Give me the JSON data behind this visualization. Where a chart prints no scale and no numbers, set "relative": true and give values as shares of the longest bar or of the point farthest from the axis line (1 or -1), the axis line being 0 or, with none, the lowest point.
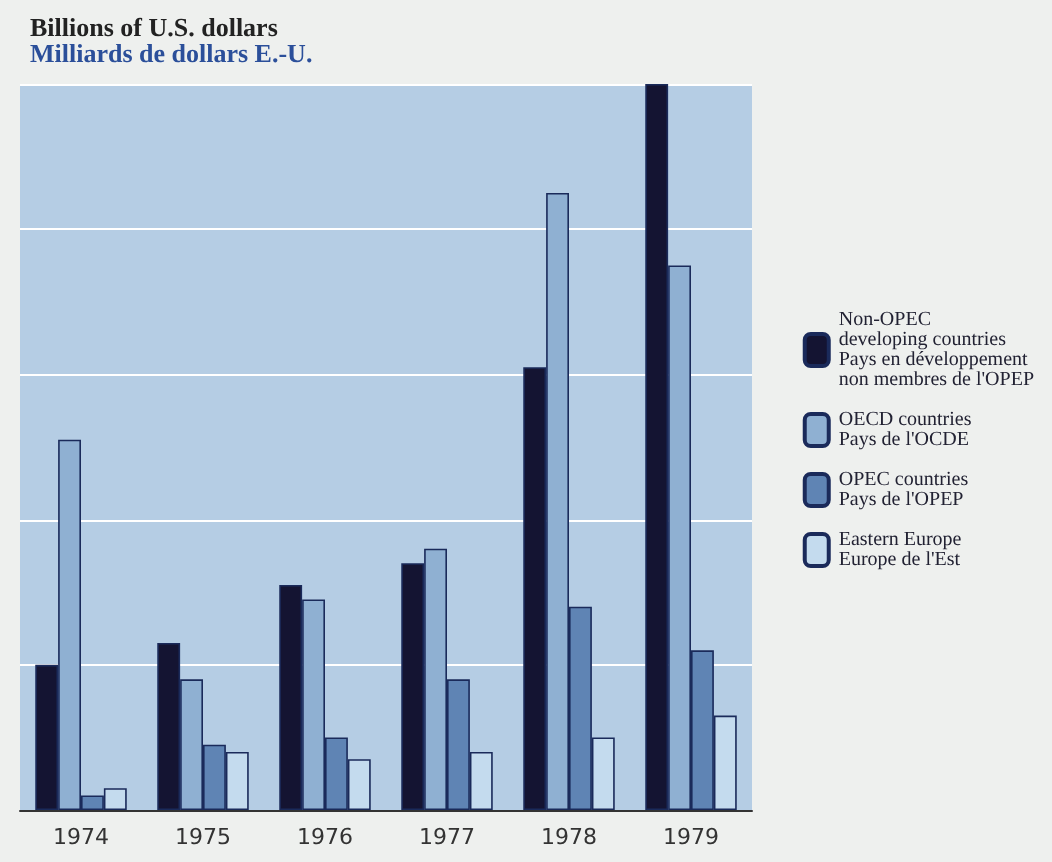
{
  "chart_data": {
    "type": "bar",
    "ylabel": "Billions of U.S. dollars\nMilliards de dollars E.-U.",
    "relative": true,
    "grid": "y",
    "legend": "right",
    "categories": [
      "1974",
      "1975",
      "1976",
      "1977",
      "1978",
      "1979"
    ],
    "series": [
      {
        "name": "Non-OPEC\ndeveloping countries\nPays en développement\nnon membres de l'OPEP",
        "color": "#141432",
        "values": [
          0.2,
          0.23,
          0.31,
          0.34,
          0.61,
          1
        ]
      },
      {
        "name": "OECD countries\nPays de l'OCDE",
        "color": "#8fb0d2",
        "values": [
          0.51,
          0.18,
          0.29,
          0.36,
          0.85,
          0.75
        ]
      },
      {
        "name": "OPEC countries\nPays de l'OPEP",
        "color": "#5f84b4",
        "values": [
          0.02,
          0.09,
          0.1,
          0.18,
          0.28,
          0.22
        ]
      },
      {
        "name": "Eastern Europe\nEurope de l'Est",
        "color": "#c4dbee",
        "values": [
          0.03,
          0.08,
          0.07,
          0.08,
          0.1,
          0.13
        ]
      }
    ]
  }
}
